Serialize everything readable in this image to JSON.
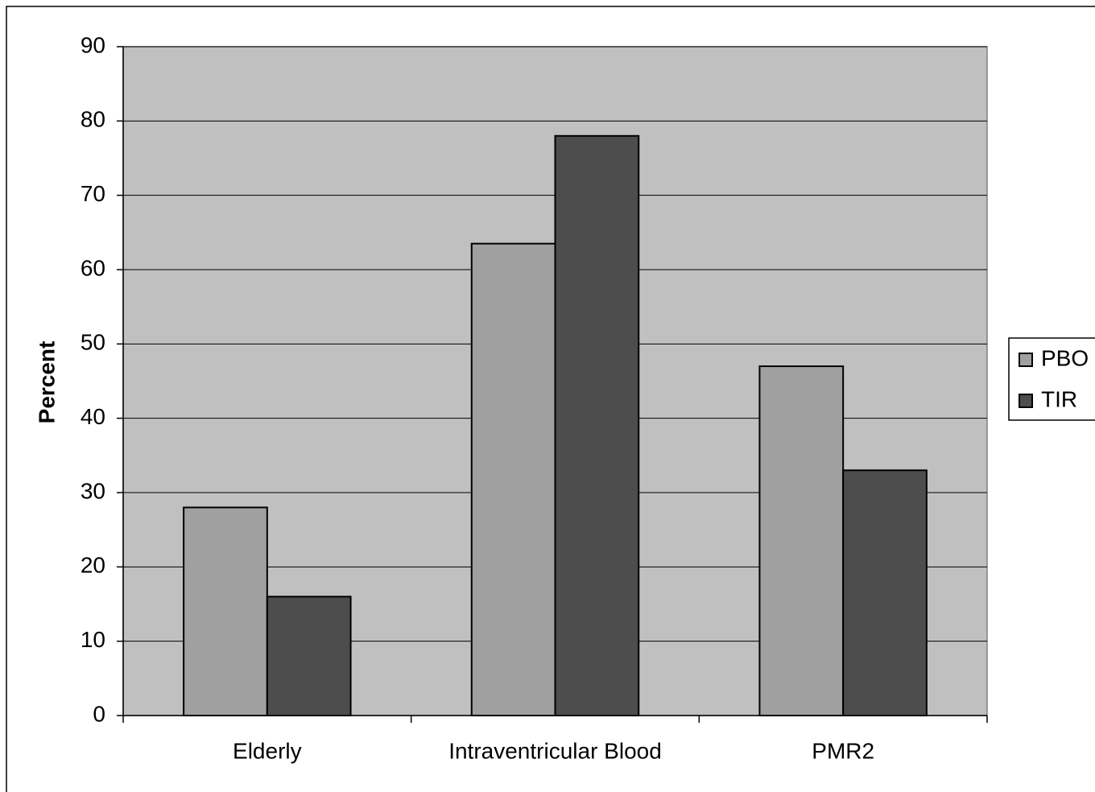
{
  "chart_data": {
    "type": "bar",
    "y_label": "Percent",
    "categories": [
      "Elderly",
      "Intraventricular Blood",
      "PMR2"
    ],
    "series": [
      {
        "name": "PBO",
        "color": "#a0a0a0",
        "values": [
          28,
          63.5,
          47
        ]
      },
      {
        "name": "TIR",
        "color": "#4d4d4d",
        "values": [
          16,
          78,
          33
        ]
      }
    ],
    "ylim": [
      0,
      90
    ],
    "yticks": [
      0,
      10,
      20,
      30,
      40,
      50,
      60,
      70,
      80,
      90
    ],
    "grid": true,
    "plot_background": "#c0c0c0",
    "legend": "right"
  }
}
